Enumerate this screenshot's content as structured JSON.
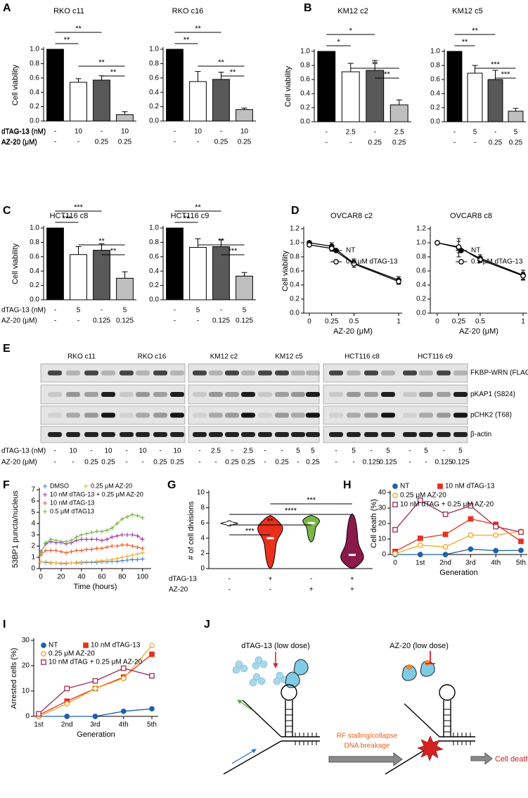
{
  "panel_labels": [
    "A",
    "B",
    "C",
    "D",
    "E",
    "F",
    "G",
    "H",
    "I",
    "J"
  ],
  "chart_data": [
    {
      "type": "bar",
      "title": "RKO c11",
      "y_label": "Cell viability",
      "values": [
        1.0,
        0.54,
        0.57,
        0.09
      ],
      "errors": [
        0,
        0.05,
        0.06,
        0.04
      ],
      "colors": [
        "#000000",
        "#ffffff",
        "#595959",
        "#bfbfbf"
      ],
      "ylim": [
        0,
        1
      ],
      "yticks": [
        {
          "value": 0,
          "label": "0.0"
        },
        0.2,
        0.4,
        0.6,
        0.8,
        {
          "value": 1,
          "label": "1.0"
        }
      ],
      "significance": [
        "**",
        "**",
        "**",
        "**"
      ],
      "treatments": [
        {
          "name": "dTAG-13 (nM)",
          "values": [
            "-",
            "10",
            "-",
            "10"
          ]
        },
        {
          "name": "AZ-20 (μM)",
          "values": [
            "-",
            "-",
            "0.25",
            "0.25"
          ]
        }
      ]
    },
    {
      "type": "bar",
      "title": "RKO c16",
      "values": [
        1.0,
        0.55,
        0.58,
        0.16
      ],
      "errors": [
        0,
        0.14,
        0.1,
        0.02
      ],
      "colors": [
        "#000000",
        "#ffffff",
        "#595959",
        "#bfbfbf"
      ],
      "ylim": [
        0,
        1
      ],
      "yticks": [
        {
          "value": 0,
          "label": "0.0"
        },
        0.2,
        0.4,
        0.6,
        0.8,
        {
          "value": 1,
          "label": "1.0"
        }
      ],
      "significance": [
        "**",
        "**",
        "**",
        "**"
      ],
      "treatments": [
        {
          "values": [
            "-",
            "10",
            "-",
            "10"
          ]
        },
        {
          "values": [
            "-",
            "-",
            "0.25",
            "0.25"
          ]
        }
      ]
    },
    {
      "type": "bar",
      "title": "KM12 c2",
      "y_label": "Cell viability",
      "values": [
        1.0,
        0.71,
        0.73,
        0.24
      ],
      "errors": [
        0,
        0.12,
        0.14,
        0.07
      ],
      "colors": [
        "#000000",
        "#ffffff",
        "#595959",
        "#bfbfbf"
      ],
      "ylim": [
        0,
        1
      ],
      "yticks": [
        {
          "value": 0,
          "label": "0.0"
        },
        0.2,
        0.4,
        0.6,
        0.8,
        {
          "value": 1,
          "label": "1.0"
        }
      ],
      "significance": [
        "*",
        "*",
        "**",
        "**"
      ],
      "treatments": [
        {
          "name": "dTAG-13 (nM)",
          "values": [
            "-",
            "2.5",
            "-",
            "2.5"
          ]
        },
        {
          "name": "AZ-20 (μM)",
          "values": [
            "-",
            "-",
            "0.25",
            "0.25"
          ]
        }
      ]
    },
    {
      "type": "bar",
      "title": "KM12 c5",
      "values": [
        1.0,
        0.69,
        0.6,
        0.15
      ],
      "errors": [
        0,
        0.11,
        0.13,
        0.04
      ],
      "colors": [
        "#000000",
        "#ffffff",
        "#595959",
        "#bfbfbf"
      ],
      "ylim": [
        0,
        1
      ],
      "yticks": [
        {
          "value": 0,
          "label": "0.0"
        },
        0.2,
        0.4,
        0.6,
        0.8,
        {
          "value": 1,
          "label": "1.0"
        }
      ],
      "significance": [
        "**",
        "**",
        "***",
        "***"
      ],
      "treatments": [
        {
          "values": [
            "-",
            "5",
            "-",
            "5"
          ]
        },
        {
          "values": [
            "-",
            "-",
            "0.25",
            "0.25"
          ]
        }
      ]
    },
    {
      "type": "bar",
      "title": "HCT116 c8",
      "y_label": "Cell viability",
      "values": [
        1.0,
        0.63,
        0.69,
        0.3
      ],
      "errors": [
        0,
        0.11,
        0.09,
        0.09
      ],
      "colors": [
        "#000000",
        "#ffffff",
        "#595959",
        "#bfbfbf"
      ],
      "ylim": [
        0,
        1
      ],
      "yticks": [
        {
          "value": 0,
          "label": "0.0"
        },
        0.2,
        0.4,
        0.6,
        0.8,
        {
          "value": 1,
          "label": "1.0"
        }
      ],
      "significance": [
        "***",
        "***",
        "**",
        "**"
      ],
      "treatments": [
        {
          "name": "dTAG-13 (nM)",
          "values": [
            "-",
            "5",
            "-",
            "5"
          ]
        },
        {
          "name": "AZ-20 (μM)",
          "values": [
            "-",
            "-",
            "0.125",
            "0.125"
          ]
        }
      ]
    },
    {
      "type": "bar",
      "title": "HCT116 c9",
      "values": [
        1.0,
        0.73,
        0.74,
        0.33
      ],
      "errors": [
        0,
        0.12,
        0.1,
        0.05
      ],
      "colors": [
        "#000000",
        "#ffffff",
        "#595959",
        "#bfbfbf"
      ],
      "ylim": [
        0,
        1
      ],
      "yticks": [
        {
          "value": 0,
          "label": "0.0"
        },
        0.2,
        0.4,
        0.6,
        0.8,
        {
          "value": 1,
          "label": "1.0"
        }
      ],
      "significance": [
        "**",
        "**",
        "**",
        "***"
      ],
      "treatments": [
        {
          "values": [
            "-",
            "5",
            "-",
            "5"
          ]
        },
        {
          "values": [
            "-",
            "-",
            "0.125",
            "0.125"
          ]
        }
      ]
    },
    {
      "type": "line",
      "title": "OVCAR8 c2",
      "y_label": "Cell viability",
      "x_label": "AZ-20 (μM)",
      "x": [
        0,
        0.25,
        0.5,
        1
      ],
      "xlim": [
        0,
        1
      ],
      "xticks": [
        0,
        0.25,
        0.5,
        1
      ],
      "ylim": [
        0,
        1.2
      ],
      "yticks": [
        {
          "value": 0,
          "label": "0.0"
        },
        0.2,
        0.4,
        0.6,
        0.8,
        {
          "value": 1,
          "label": "1.0"
        },
        1.2
      ],
      "series": [
        {
          "name": "NT",
          "color": "#000000",
          "marker": "filled-circle",
          "values": [
            1.0,
            0.95,
            0.71,
            0.47
          ],
          "errors": [
            0.02,
            0.05,
            0.06,
            0.05
          ]
        },
        {
          "name": "0.5 μM dTAG-13",
          "color": "#000000",
          "marker": "open-circle",
          "values": [
            0.97,
            0.92,
            0.7,
            0.45
          ],
          "errors": [
            0.02,
            0.04,
            0.05,
            0.04
          ]
        }
      ]
    },
    {
      "type": "line",
      "title": "OVCAR8 c8",
      "x_label": "AZ-20 (μM)",
      "x": [
        0,
        0.25,
        0.5,
        1
      ],
      "xlim": [
        0,
        1
      ],
      "xticks": [
        0,
        0.25,
        0.5,
        1
      ],
      "ylim": [
        0,
        1.2
      ],
      "yticks": [
        {
          "value": 0,
          "label": "0.0"
        },
        0.2,
        0.4,
        0.6,
        0.8,
        {
          "value": 1,
          "label": "1.0"
        },
        1.2
      ],
      "series": [
        {
          "name": "NT",
          "color": "#000000",
          "marker": "filled-circle",
          "values": [
            1.0,
            0.93,
            0.78,
            0.54
          ],
          "errors": [
            0.02,
            0.13,
            0.05,
            0.07
          ]
        },
        {
          "name": "0.5 μM dTAG-13",
          "color": "#000000",
          "marker": "open-circle",
          "values": [
            1.0,
            0.94,
            0.76,
            0.53
          ],
          "errors": [
            0.02,
            0.08,
            0.04,
            0.05
          ]
        }
      ]
    },
    {
      "type": "line",
      "y_label": "53BP1 puncta/nucleus",
      "x_label": "Time (hours)",
      "x": [
        0,
        5,
        10,
        15,
        20,
        25,
        30,
        35,
        40,
        45,
        50,
        55,
        60,
        65,
        70,
        75,
        80,
        85,
        90,
        95,
        100
      ],
      "xlim": [
        0,
        105
      ],
      "xticks": [
        0,
        20,
        40,
        60,
        80,
        100
      ],
      "ylim": [
        0,
        7
      ],
      "yticks": [
        0,
        1,
        2,
        3,
        4,
        5,
        6,
        7
      ],
      "series": [
        {
          "name": "DMSO",
          "color": "#3a7fd5",
          "marker": "plus",
          "values": [
            0.6,
            0.55,
            0.5,
            0.5,
            0.45,
            0.45,
            0.5,
            0.5,
            0.5,
            0.55,
            0.55,
            0.55,
            0.6,
            0.6,
            0.65,
            0.65,
            0.7,
            0.75,
            0.8,
            0.8,
            0.85
          ]
        },
        {
          "name": "0.25 μM AZ-20",
          "color": "#f0b030",
          "marker": "plus",
          "values": [
            0.6,
            0.6,
            0.55,
            0.5,
            0.5,
            0.5,
            0.5,
            0.55,
            0.6,
            0.6,
            0.6,
            0.65,
            0.7,
            0.75,
            0.8,
            0.9,
            1.0,
            1.1,
            1.2,
            1.3,
            1.4
          ]
        },
        {
          "name": "10 nM dTAG-13 + 0.25 μM AZ-20",
          "color": "#9b3aa8",
          "marker": "plus",
          "values": [
            1.5,
            2.2,
            2.4,
            2.3,
            2.3,
            2.2,
            2.3,
            2.5,
            2.6,
            2.6,
            2.6,
            2.6,
            2.5,
            2.6,
            2.8,
            2.9,
            3.0,
            3.0,
            3.0,
            2.9,
            2.6
          ]
        },
        {
          "name": "10 nM dTAG-13",
          "color": "#e85a2a",
          "marker": "plus",
          "values": [
            1.2,
            1.6,
            1.6,
            1.6,
            1.5,
            1.4,
            1.5,
            1.6,
            1.6,
            1.7,
            1.7,
            1.8,
            1.8,
            1.9,
            2.0,
            2.0,
            2.1,
            2.1,
            2.0,
            1.9,
            1.8
          ]
        },
        {
          "name": "0.5 μM dTAG13",
          "color": "#7ab648",
          "marker": "plus",
          "values": [
            1.4,
            2.3,
            2.6,
            2.5,
            2.4,
            2.4,
            2.5,
            2.8,
            3.0,
            3.1,
            3.2,
            3.3,
            3.3,
            3.4,
            3.6,
            4.0,
            4.4,
            4.6,
            4.8,
            4.7,
            4.5
          ]
        }
      ]
    },
    {
      "type": "violin",
      "y_label": "# of cell divisions",
      "medians": [
        6,
        4,
        6,
        1.8
      ],
      "ranges": [
        [
          5.6,
          6.3
        ],
        [
          0,
          7
        ],
        [
          3.5,
          7
        ],
        [
          0,
          7.2
        ]
      ],
      "colors": [
        "#ffffff",
        "#e8301c",
        "#7ab648",
        "#8b1a4a"
      ],
      "ylim": [
        0,
        10
      ],
      "yticks": [
        0,
        2,
        4,
        6,
        8,
        10
      ],
      "significance": [
        "***",
        "****",
        "**",
        "***"
      ],
      "treatments": [
        {
          "name": "dTAG-13",
          "values": [
            "-",
            "+",
            "-",
            "+"
          ]
        },
        {
          "name": "AZ-20",
          "values": [
            "-",
            "-",
            "+",
            "+"
          ]
        }
      ]
    },
    {
      "type": "line",
      "y_label": "Cell death (%)",
      "x_label": "Generation",
      "categories": [
        "0",
        "1st",
        "2nd",
        "3rd",
        "4th",
        "5th"
      ],
      "ylim": [
        0,
        40
      ],
      "yticks": [
        0,
        10,
        20,
        30,
        40
      ],
      "series": [
        {
          "name": "NT",
          "color": "#1f5fa8",
          "marker": "filled-circle",
          "values": [
            0,
            0,
            0,
            3.5,
            2.5,
            2.7
          ]
        },
        {
          "name": "10 nM dTAG-13",
          "color": "#e8301c",
          "marker": "filled-square",
          "values": [
            2,
            10.5,
            13,
            23,
            19.5,
            8.5
          ]
        },
        {
          "name": "0.25 μM AZ-20",
          "color": "#f5a623",
          "marker": "open-circle",
          "values": [
            0.5,
            6,
            5,
            12.5,
            12.5,
            15
          ]
        },
        {
          "name": "10 nM dTAG + 0.25 μM AZ-20",
          "color": "#9b2d5a",
          "marker": "open-square",
          "values": [
            16,
            35,
            26,
            31.5,
            18,
            14.5
          ]
        }
      ]
    },
    {
      "type": "line",
      "y_label": "Arrested cells (%)",
      "x_label": "Generation",
      "categories": [
        "1st",
        "2nd",
        "3rd",
        "4th",
        "5th"
      ],
      "ylim": [
        0,
        30
      ],
      "yticks": [
        0,
        10,
        20,
        30
      ],
      "series": [
        {
          "name": "NT",
          "color": "#1f5fa8",
          "marker": "filled-circle",
          "values": [
            0,
            0,
            0,
            2,
            3
          ]
        },
        {
          "name": "10 nM dTAG-13",
          "color": "#e8301c",
          "marker": "filled-square",
          "values": [
            0.5,
            6,
            11,
            15.5,
            24.5
          ]
        },
        {
          "name": "0.25 μM AZ-20",
          "color": "#f5a623",
          "marker": "open-circle",
          "values": [
            0,
            5,
            11,
            15,
            28
          ]
        },
        {
          "name": "10 nM dTAG + 0.25 μM AZ-20",
          "color": "#9b2d5a",
          "marker": "open-square",
          "values": [
            1,
            11,
            14,
            19,
            16
          ]
        }
      ]
    }
  ],
  "blot": {
    "groups": [
      "RKO c11",
      "RKO c16",
      "KM12 c2",
      "KM12 c5",
      "HCT116 c8",
      "HCT116 c9"
    ],
    "rows": [
      "FKBP-WRN (FLAG)",
      "pKAP1 (S824)",
      "pCHK2 (T68)",
      "β-actin"
    ],
    "treatments": [
      {
        "name": "dTAG-13 (nM)",
        "values": [
          "-",
          "10",
          "-",
          "10",
          "-",
          "10",
          "-",
          "10",
          "-",
          "2.5",
          "-",
          "2.5",
          "-",
          "-",
          "5",
          "5",
          "-",
          "5",
          "-",
          "5",
          "-",
          "5",
          "-",
          "5"
        ]
      },
      {
        "name": "AZ-20 (μM)",
        "values": [
          "-",
          "-",
          "0.25",
          "0.25",
          "-",
          "-",
          "0.25",
          "0.25",
          "-",
          "-",
          "0.25",
          "0.25",
          "-",
          "0.25",
          "-",
          "0.25",
          "-",
          "-",
          "0.125",
          "0.125",
          "-",
          "-",
          "0.125",
          "0.125"
        ]
      }
    ]
  },
  "diagram": {
    "left_label": "dTAG-13 (low dose)",
    "right_label": "AZ-20 (low dose)",
    "process": "RF stalling/collapse",
    "process_2": "DNA breakage",
    "outcome": "Cell death"
  }
}
